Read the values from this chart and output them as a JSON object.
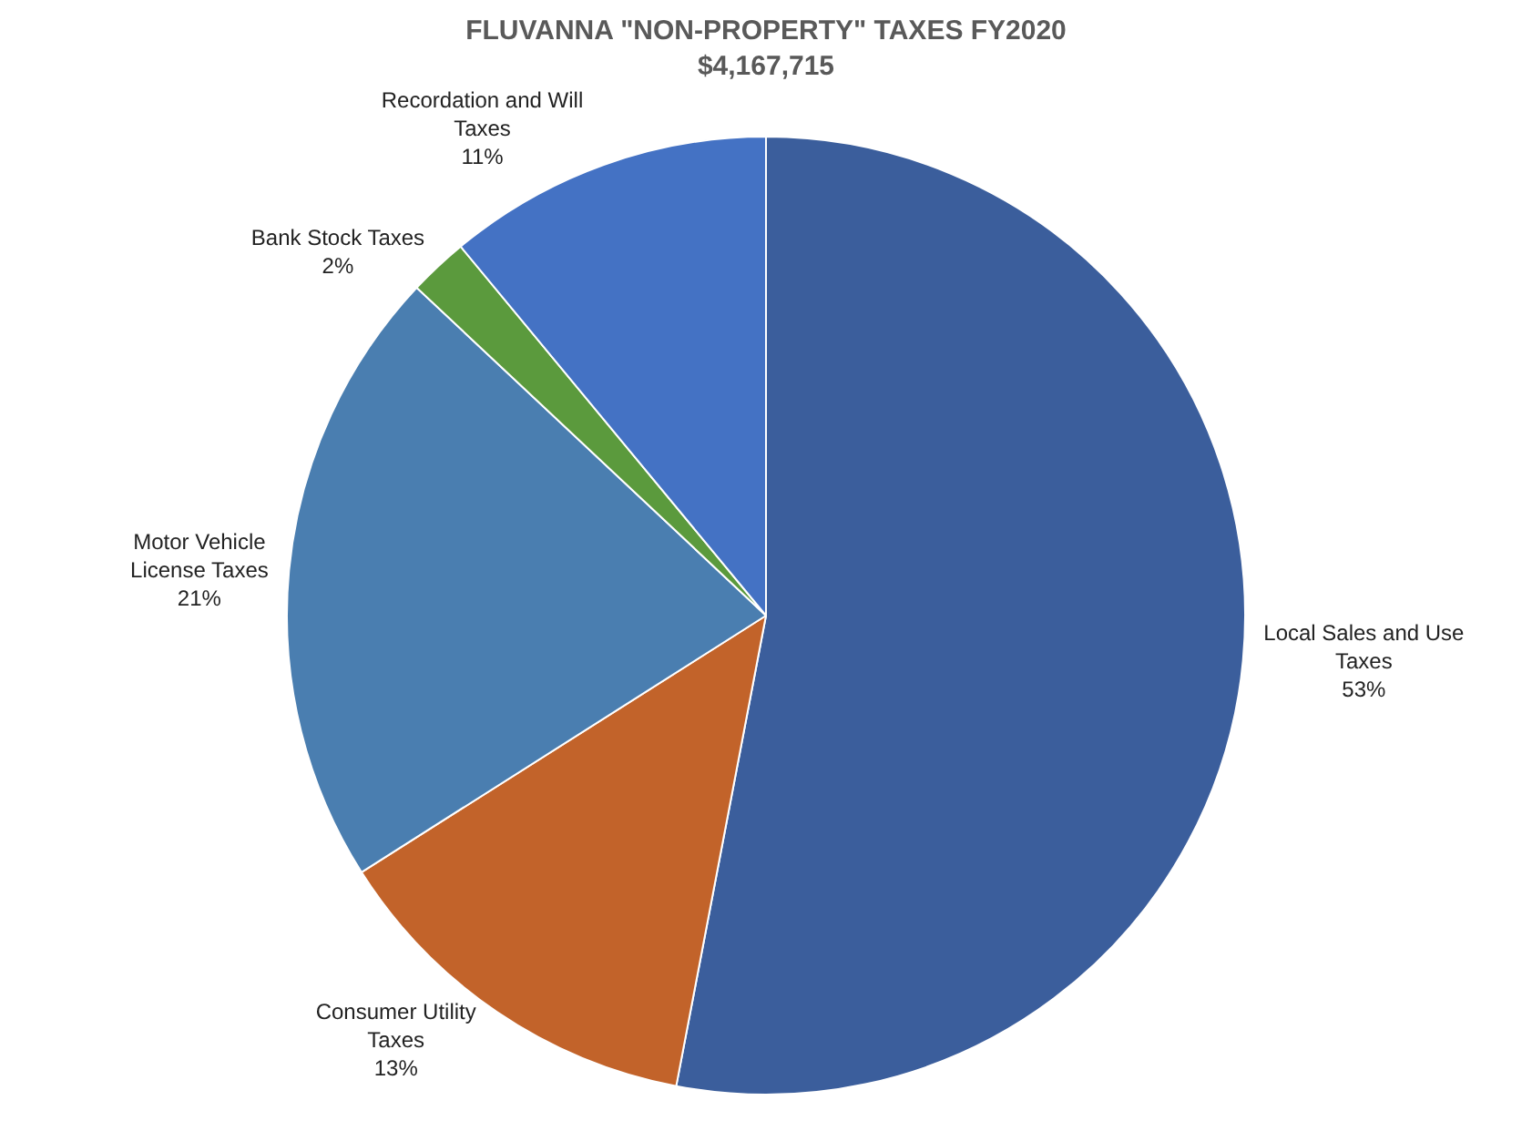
{
  "chart_data": {
    "type": "pie",
    "title": "FLUVANNA \"NON-PROPERTY\" TAXES FY2020",
    "subtitle": "$4,167,715",
    "categories": [
      "Local Sales and Use Taxes",
      "Consumer Utility Taxes",
      "Motor Vehicle License Taxes",
      "Bank Stock Taxes",
      "Recordation and Will Taxes"
    ],
    "values": [
      53,
      13,
      21,
      2,
      11
    ],
    "value_labels": [
      "53%",
      "13%",
      "21%",
      "2%",
      "11%"
    ],
    "colors": [
      "#3b5e9c",
      "#c2632a",
      "#4a7eb0",
      "#5b9a3d",
      "#4472c4"
    ],
    "legend": false
  }
}
